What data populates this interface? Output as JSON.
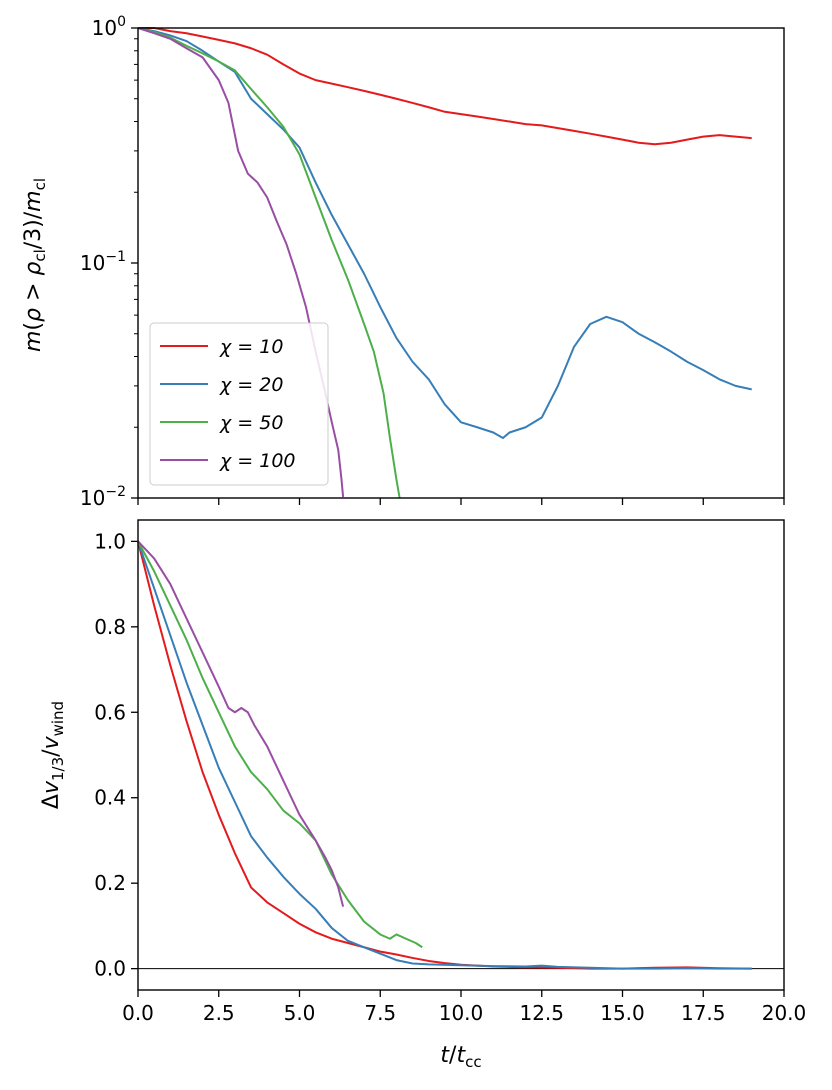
{
  "chart_data": [
    {
      "type": "line",
      "yscale": "log",
      "ylabel": "m(ρ > ρ_cl/3)/m_cl",
      "xlabel": "",
      "xlim": [
        0,
        20
      ],
      "ylim": [
        0.01,
        1
      ],
      "y_ticks": [
        {
          "value": 1,
          "base": "10",
          "exp": "0"
        },
        {
          "value": 0.1,
          "base": "10",
          "exp": "−1"
        },
        {
          "value": 0.01,
          "base": "10",
          "exp": "−2"
        }
      ],
      "legend": {
        "position": "bottom-left",
        "entries": [
          {
            "label": "χ = 10",
            "color": "#e41a1c"
          },
          {
            "label": "χ = 20",
            "color": "#377eb8"
          },
          {
            "label": "χ = 50",
            "color": "#4daf4a"
          },
          {
            "label": "χ = 100",
            "color": "#984ea3"
          }
        ]
      },
      "series": [
        {
          "name": "χ = 10",
          "color": "#e41a1c",
          "x": [
            0,
            0.5,
            1,
            1.5,
            2,
            2.5,
            3,
            3.5,
            4,
            4.5,
            5,
            5.5,
            6,
            6.5,
            7,
            7.5,
            8,
            8.5,
            9,
            9.5,
            10,
            10.5,
            11,
            11.5,
            12,
            12.5,
            13,
            13.5,
            14,
            14.5,
            15,
            15.5,
            16,
            16.5,
            17,
            17.5,
            18,
            18.5,
            19
          ],
          "y": [
            1.0,
            1.0,
            0.97,
            0.95,
            0.92,
            0.89,
            0.86,
            0.82,
            0.77,
            0.7,
            0.64,
            0.6,
            0.58,
            0.56,
            0.54,
            0.52,
            0.5,
            0.48,
            0.46,
            0.44,
            0.43,
            0.42,
            0.41,
            0.4,
            0.39,
            0.385,
            0.375,
            0.365,
            0.355,
            0.345,
            0.335,
            0.325,
            0.32,
            0.325,
            0.335,
            0.345,
            0.35,
            0.345,
            0.34
          ]
        },
        {
          "name": "χ = 20",
          "color": "#377eb8",
          "x": [
            0,
            0.5,
            1,
            1.5,
            2,
            2.5,
            3,
            3.5,
            4,
            4.5,
            5,
            5.5,
            6,
            6.5,
            7,
            7.5,
            8,
            8.5,
            9,
            9.5,
            10,
            10.5,
            11,
            11.3,
            11.5,
            12,
            12.5,
            13,
            13.5,
            14,
            14.5,
            15,
            15.5,
            16,
            16.5,
            17,
            17.5,
            18,
            18.5,
            19
          ],
          "y": [
            1.0,
            0.97,
            0.93,
            0.88,
            0.8,
            0.72,
            0.65,
            0.5,
            0.43,
            0.37,
            0.31,
            0.22,
            0.16,
            0.12,
            0.09,
            0.065,
            0.048,
            0.038,
            0.032,
            0.025,
            0.021,
            0.02,
            0.019,
            0.018,
            0.019,
            0.02,
            0.022,
            0.03,
            0.044,
            0.055,
            0.059,
            0.056,
            0.05,
            0.046,
            0.042,
            0.038,
            0.035,
            0.032,
            0.03,
            0.029
          ]
        },
        {
          "name": "χ = 50",
          "color": "#4daf4a",
          "x": [
            0,
            0.5,
            1,
            1.5,
            2,
            2.5,
            3,
            3.5,
            4,
            4.5,
            5,
            5.5,
            6,
            6.5,
            7,
            7.3,
            7.6,
            7.8,
            8.0,
            8.1
          ],
          "y": [
            1.0,
            0.96,
            0.91,
            0.84,
            0.78,
            0.72,
            0.66,
            0.55,
            0.46,
            0.38,
            0.29,
            0.19,
            0.125,
            0.085,
            0.055,
            0.042,
            0.028,
            0.018,
            0.012,
            0.01
          ]
        },
        {
          "name": "χ = 100",
          "color": "#984ea3",
          "x": [
            0,
            0.5,
            1,
            1.5,
            2,
            2.5,
            2.8,
            3.1,
            3.4,
            3.7,
            4.0,
            4.3,
            4.6,
            4.9,
            5.2,
            5.5,
            5.8,
            6.0,
            6.2,
            6.3,
            6.35
          ],
          "y": [
            1.0,
            0.95,
            0.9,
            0.82,
            0.75,
            0.6,
            0.48,
            0.3,
            0.24,
            0.22,
            0.19,
            0.15,
            0.12,
            0.09,
            0.065,
            0.042,
            0.028,
            0.021,
            0.016,
            0.012,
            0.0101
          ]
        }
      ]
    },
    {
      "type": "line",
      "yscale": "linear",
      "xlabel": "t/t_cc",
      "ylabel": "Δv_1/3 / v_wind",
      "xlim": [
        0,
        20
      ],
      "ylim": [
        -0.05,
        1.05
      ],
      "x_ticks": [
        "0.0",
        "2.5",
        "5.0",
        "7.5",
        "10.0",
        "12.5",
        "15.0",
        "17.5",
        "20.0"
      ],
      "y_ticks": [
        "0.0",
        "0.2",
        "0.4",
        "0.6",
        "0.8",
        "1.0"
      ],
      "hline": 0,
      "series": [
        {
          "name": "χ = 10",
          "color": "#e41a1c",
          "x": [
            0,
            0.5,
            1,
            1.5,
            2,
            2.5,
            3,
            3.5,
            4,
            4.5,
            5,
            5.5,
            6,
            6.5,
            7,
            7.5,
            8,
            8.5,
            9,
            9.5,
            10,
            11,
            12,
            13,
            14,
            15,
            16,
            17,
            18,
            19
          ],
          "y": [
            1.0,
            0.85,
            0.71,
            0.58,
            0.46,
            0.36,
            0.27,
            0.19,
            0.155,
            0.13,
            0.105,
            0.085,
            0.07,
            0.06,
            0.05,
            0.04,
            0.033,
            0.025,
            0.018,
            0.013,
            0.009,
            0.005,
            0.003,
            0.002,
            0.0,
            0.0,
            0.002,
            0.003,
            0.001,
            0.0
          ]
        },
        {
          "name": "χ = 20",
          "color": "#377eb8",
          "x": [
            0,
            0.5,
            1,
            1.5,
            2,
            2.5,
            3,
            3.5,
            4,
            4.5,
            5,
            5.5,
            6,
            6.5,
            7,
            7.5,
            8,
            8.5,
            9,
            10,
            11,
            12,
            12.5,
            13,
            14,
            15,
            16,
            17,
            18,
            19
          ],
          "y": [
            1.0,
            0.89,
            0.78,
            0.67,
            0.57,
            0.47,
            0.39,
            0.31,
            0.26,
            0.215,
            0.175,
            0.14,
            0.095,
            0.065,
            0.05,
            0.035,
            0.02,
            0.012,
            0.01,
            0.008,
            0.006,
            0.005,
            0.007,
            0.004,
            0.002,
            0.0,
            0.0,
            0.001,
            0.0,
            0.0
          ]
        },
        {
          "name": "χ = 50",
          "color": "#4daf4a",
          "x": [
            0,
            0.5,
            1,
            1.5,
            2,
            2.5,
            3,
            3.5,
            4,
            4.5,
            5,
            5.5,
            6,
            6.5,
            7,
            7.5,
            7.8,
            8.0,
            8.3,
            8.6,
            8.8
          ],
          "y": [
            1.0,
            0.93,
            0.85,
            0.77,
            0.68,
            0.6,
            0.52,
            0.46,
            0.42,
            0.37,
            0.34,
            0.3,
            0.22,
            0.16,
            0.11,
            0.08,
            0.07,
            0.08,
            0.07,
            0.06,
            0.05
          ]
        },
        {
          "name": "χ = 100",
          "color": "#984ea3",
          "x": [
            0,
            0.5,
            1,
            1.5,
            2,
            2.5,
            2.8,
            3.0,
            3.2,
            3.4,
            3.6,
            4.0,
            4.5,
            5.0,
            5.5,
            5.8,
            6.0,
            6.2,
            6.35
          ],
          "y": [
            1.0,
            0.96,
            0.9,
            0.82,
            0.74,
            0.66,
            0.61,
            0.6,
            0.61,
            0.6,
            0.57,
            0.52,
            0.44,
            0.36,
            0.3,
            0.26,
            0.23,
            0.19,
            0.145
          ]
        }
      ]
    }
  ]
}
